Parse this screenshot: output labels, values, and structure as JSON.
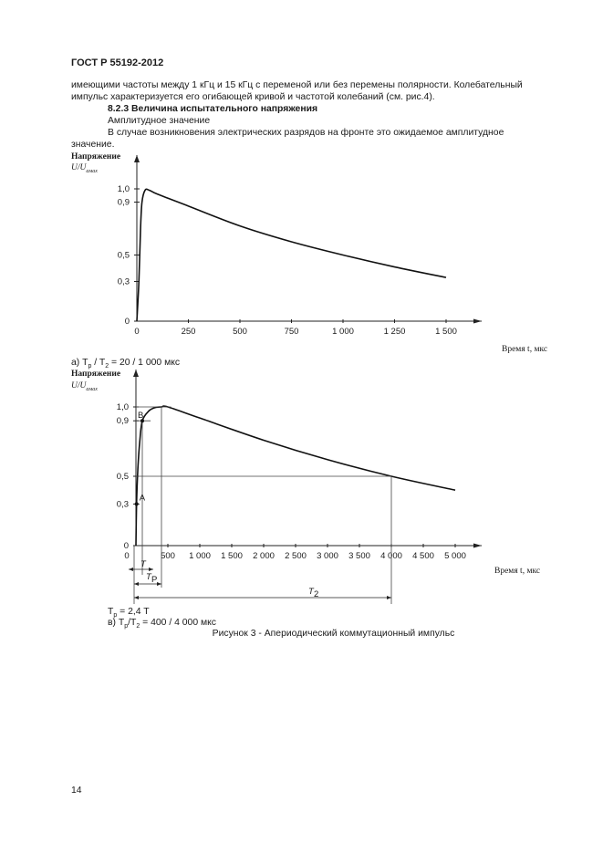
{
  "header": {
    "standard": "ГОСТ Р 55192-2012"
  },
  "body": {
    "line1": "имеющими частоты между 1 кГц и 15 кГц  с переменой или без перемены полярности. Колебательный",
    "line2": "импульс характеризуется его огибающей кривой и частотой колебаний (см. рис.4).",
    "section_heading": "8.2.3 Величина испытательного напряжения",
    "subheading": "Амплитудное значение",
    "line3": "В случае возникновения электрических разрядов на фронте это ожидаемое амплитудное",
    "line4": "значение."
  },
  "chart_data": [
    {
      "type": "line",
      "ylabel": "Напряжение",
      "ylabel_unit": "U/U",
      "ylabel_sub": "амах",
      "xlabel": "Время t, мкс",
      "yticks": [
        "0",
        "0,3",
        "0,5",
        "0,9",
        "1,0"
      ],
      "ytick_values": [
        0,
        0.3,
        0.5,
        0.9,
        1.0
      ],
      "xticks": [
        "0",
        "250",
        "500",
        "750",
        "1 000",
        "1 250",
        "1 500"
      ],
      "xtick_values": [
        0,
        250,
        500,
        750,
        1000,
        1250,
        1500
      ],
      "xlim": [
        0,
        1700
      ],
      "ylim": [
        0,
        1.25
      ],
      "x": [
        0,
        10,
        18,
        25,
        40,
        60,
        100,
        250,
        500,
        750,
        1000,
        1250,
        1500
      ],
      "y": [
        0,
        0.3,
        0.7,
        0.9,
        0.99,
        0.99,
        0.96,
        0.87,
        0.72,
        0.6,
        0.5,
        0.41,
        0.33
      ],
      "caption": "а)  T",
      "caption_sub1": "p",
      "caption_mid": " / T",
      "caption_sub2": "2",
      "caption_end": " = 20 / 1 000 мкс"
    },
    {
      "type": "line",
      "ylabel": "Напряжение",
      "ylabel_unit": "U/U",
      "ylabel_sub": "амах",
      "xlabel": "Время t, мкс",
      "yticks": [
        "0",
        "0,3",
        "0,5",
        "0,9",
        "1,0"
      ],
      "ytick_values": [
        0,
        0.3,
        0.5,
        0.9,
        1.0
      ],
      "xticks": [
        "0",
        "500",
        "1 000",
        "1 500",
        "2 000",
        "2 500",
        "3 000",
        "3 500",
        "4 000",
        "4 500",
        "5 000"
      ],
      "xtick_values": [
        0,
        500,
        1000,
        1500,
        2000,
        2500,
        3000,
        3500,
        4000,
        4500,
        5000
      ],
      "xlim": [
        0,
        5600
      ],
      "ylim": [
        0,
        1.25
      ],
      "x": [
        0,
        10,
        30,
        60,
        100,
        200,
        300,
        400,
        500,
        1000,
        2000,
        3000,
        4000,
        5000
      ],
      "y": [
        0,
        0.3,
        0.55,
        0.75,
        0.9,
        0.97,
        0.995,
        1.0,
        1.0,
        0.92,
        0.76,
        0.62,
        0.5,
        0.4
      ],
      "points": [
        {
          "label": "A",
          "x": 10,
          "y": 0.3
        },
        {
          "label": "B",
          "x": 100,
          "y": 0.9
        }
      ],
      "annotations": {
        "T": "T",
        "Tp": "T",
        "Tp_sub": "P",
        "T2": "T",
        "T2_sub": "2",
        "T_end": 100,
        "Tp_end": 400,
        "T2_end": 4000
      },
      "note_tp": "T",
      "note_tp_sub": "p",
      "note_tp_end": " = 2,4 T",
      "caption": "в)  T",
      "caption_sub1": "p",
      "caption_mid": "/T",
      "caption_sub2": "2",
      "caption_end": " = 400 /  4 000 мкс"
    }
  ],
  "figure_caption": "Рисунок 3 - Апериодический коммутационный импульс",
  "page_number": "14"
}
